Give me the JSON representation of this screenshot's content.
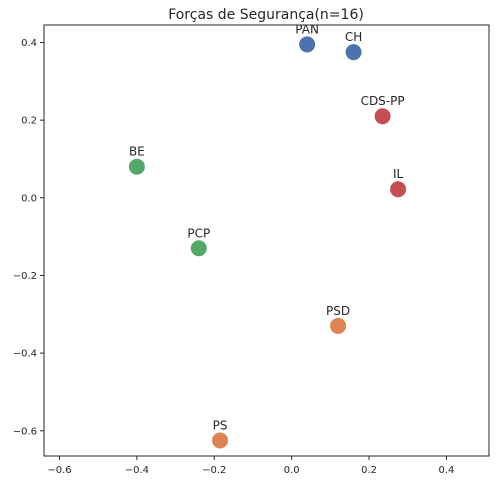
{
  "chart_data": {
    "type": "scatter",
    "title": "Forças de Segurança(n=16)",
    "xlabel": "",
    "ylabel": "",
    "xlim": [
      -0.64,
      0.51
    ],
    "ylim": [
      -0.665,
      0.445
    ],
    "xticks": [
      -0.6,
      -0.4,
      -0.2,
      0.0,
      0.2,
      0.4
    ],
    "xtick_labels": [
      "−0.6",
      "−0.4",
      "−0.2",
      "0.0",
      "0.2",
      "0.4"
    ],
    "yticks": [
      -0.6,
      -0.4,
      -0.2,
      0.0,
      0.2,
      0.4
    ],
    "ytick_labels": [
      "−0.6",
      "−0.4",
      "−0.2",
      "0.0",
      "0.2",
      "0.4"
    ],
    "grid": false,
    "points": [
      {
        "label": "PAN",
        "x": 0.04,
        "y": 0.395,
        "color": "#4c72b0"
      },
      {
        "label": "CH",
        "x": 0.16,
        "y": 0.375,
        "color": "#4c72b0"
      },
      {
        "label": "CDS-PP",
        "x": 0.235,
        "y": 0.21,
        "color": "#c44e52"
      },
      {
        "label": "IL",
        "x": 0.275,
        "y": 0.022,
        "color": "#c44e52"
      },
      {
        "label": "BE",
        "x": -0.4,
        "y": 0.08,
        "color": "#55a868"
      },
      {
        "label": "PCP",
        "x": -0.24,
        "y": -0.13,
        "color": "#55a868"
      },
      {
        "label": "PSD",
        "x": 0.12,
        "y": -0.33,
        "color": "#dd8452"
      },
      {
        "label": "PS",
        "x": -0.185,
        "y": -0.625,
        "color": "#dd8452"
      }
    ]
  }
}
